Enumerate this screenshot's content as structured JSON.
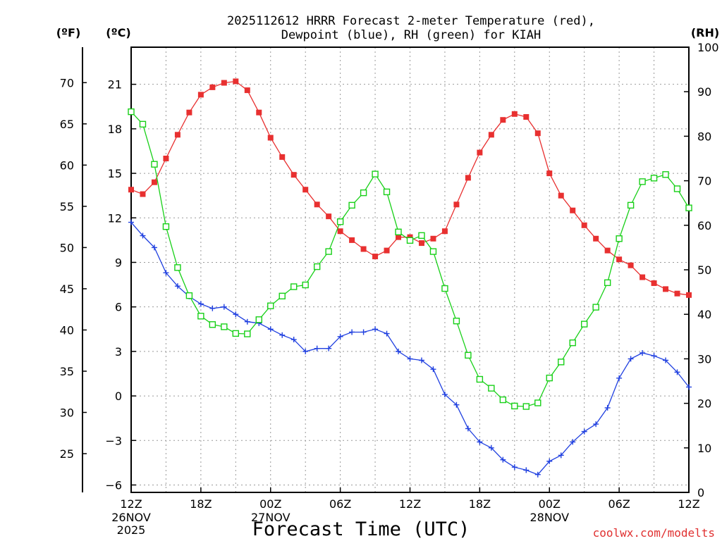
{
  "title_line1": "2025112612 HRRR Forecast 2-meter Temperature (red),",
  "title_line2": "Dewpoint (blue), RH (green) for KIAH",
  "credit": "coolwx.com/modelts",
  "chart_data": {
    "type": "line",
    "xlabel": "Forecast Time (UTC)",
    "grid": true,
    "axes": {
      "fahrenheit": {
        "unit_label": "(ºF)",
        "ticks": [
          25,
          30,
          35,
          40,
          45,
          50,
          55,
          60,
          65,
          70
        ]
      },
      "celsius": {
        "unit_label": "(ºC)",
        "range": [
          -6.5,
          23.5
        ],
        "ticks": [
          "−6",
          "−3",
          "0",
          "3",
          "6",
          "9",
          "12",
          "15",
          "18",
          "21"
        ]
      },
      "rh": {
        "unit_label": "(RH)",
        "range": [
          0,
          100
        ],
        "ticks": [
          "0",
          "10",
          "20",
          "30",
          "40",
          "50",
          "60",
          "70",
          "80",
          "90",
          "100"
        ]
      }
    },
    "x_range": [
      0,
      48
    ],
    "x_unit": "forecast hours from 2025-11-26 12Z",
    "x_ticks": [
      {
        "hour": 0,
        "label": "12Z",
        "sub1": "26NOV",
        "sub2": "2025"
      },
      {
        "hour": 6,
        "label": "18Z",
        "sub1": "",
        "sub2": ""
      },
      {
        "hour": 12,
        "label": "00Z",
        "sub1": "27NOV",
        "sub2": ""
      },
      {
        "hour": 18,
        "label": "06Z",
        "sub1": "",
        "sub2": ""
      },
      {
        "hour": 24,
        "label": "12Z",
        "sub1": "",
        "sub2": ""
      },
      {
        "hour": 30,
        "label": "18Z",
        "sub1": "",
        "sub2": ""
      },
      {
        "hour": 36,
        "label": "00Z",
        "sub1": "28NOV",
        "sub2": ""
      },
      {
        "hour": 42,
        "label": "06Z",
        "sub1": "",
        "sub2": ""
      },
      {
        "hour": 48,
        "label": "12Z",
        "sub1": "",
        "sub2": ""
      }
    ],
    "series": [
      {
        "key": "temperature",
        "axis": "celsius",
        "color": "#e83030",
        "marker": "filled-square",
        "values": [
          13.9,
          13.6,
          14.4,
          16.0,
          17.6,
          19.1,
          20.3,
          20.8,
          21.1,
          21.2,
          20.6,
          19.1,
          17.4,
          16.1,
          14.9,
          13.9,
          12.9,
          12.1,
          11.1,
          10.5,
          9.9,
          9.4,
          9.8,
          10.7,
          10.7,
          10.3,
          10.6,
          11.1,
          12.9,
          14.7,
          16.4,
          17.6,
          18.6,
          19.0,
          18.8,
          17.7,
          15.0,
          13.5,
          12.5,
          11.5,
          10.6,
          9.8,
          9.2,
          8.8,
          8.0,
          7.6,
          7.2,
          6.9,
          6.8
        ]
      },
      {
        "key": "dewpoint",
        "axis": "celsius",
        "color": "#2040e0",
        "marker": "plus",
        "values": [
          11.7,
          10.8,
          10.0,
          8.3,
          7.4,
          6.7,
          6.2,
          5.9,
          6.0,
          5.5,
          5.0,
          4.9,
          4.5,
          4.1,
          3.8,
          3.0,
          3.2,
          3.2,
          4.0,
          4.3,
          4.3,
          4.5,
          4.2,
          3.0,
          2.5,
          2.4,
          1.8,
          0.1,
          -0.6,
          -2.2,
          -3.1,
          -3.5,
          -4.3,
          -4.8,
          -5.0,
          -5.3,
          -4.4,
          -4.0,
          -3.1,
          -2.4,
          -1.9,
          -0.8,
          1.2,
          2.5,
          2.9,
          2.7,
          2.4,
          1.6,
          0.6
        ]
      },
      {
        "key": "rh",
        "axis": "rh",
        "color": "#18d018",
        "marker": "open-square",
        "values": [
          85.5,
          82.7,
          73.7,
          59.7,
          50.5,
          44.2,
          39.6,
          37.7,
          37.2,
          35.7,
          35.6,
          38.8,
          41.9,
          44.1,
          46.2,
          46.6,
          50.7,
          54.1,
          60.8,
          64.5,
          67.3,
          71.5,
          67.5,
          58.5,
          56.6,
          57.7,
          54.1,
          45.8,
          38.5,
          30.8,
          25.4,
          23.4,
          20.8,
          19.4,
          19.3,
          20.1,
          25.7,
          29.3,
          33.6,
          37.8,
          41.6,
          47.1,
          57.0,
          64.5,
          69.8,
          70.6,
          71.4,
          68.2,
          63.9
        ]
      }
    ]
  }
}
